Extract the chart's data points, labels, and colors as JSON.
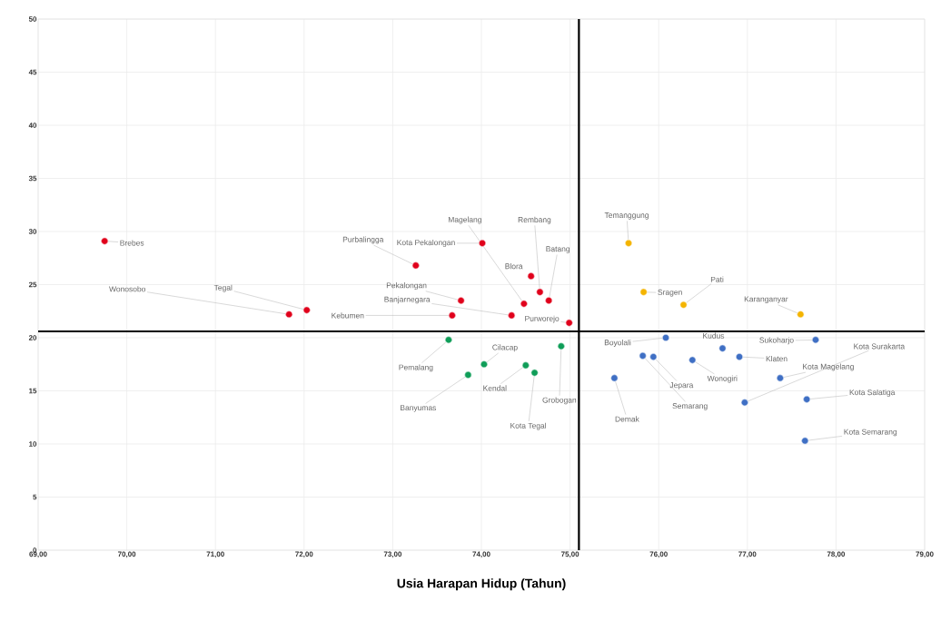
{
  "chart_data": {
    "type": "scatter",
    "xlabel": "Usia Harapan Hidup (Tahun)",
    "xlim": [
      69,
      79
    ],
    "xticks": [
      {
        "value": 69,
        "label": "69,00"
      },
      {
        "value": 70,
        "label": "70,00"
      },
      {
        "value": 71,
        "label": "71,00"
      },
      {
        "value": 72,
        "label": "72,00"
      },
      {
        "value": 73,
        "label": "73,00"
      },
      {
        "value": 74,
        "label": "74,00"
      },
      {
        "value": 75,
        "label": "75,00"
      },
      {
        "value": 76,
        "label": "76,00"
      },
      {
        "value": 77,
        "label": "77,00"
      },
      {
        "value": 78,
        "label": "78,00"
      },
      {
        "value": 79,
        "label": "79,00"
      }
    ],
    "ylim": [
      0,
      50
    ],
    "yticks": [
      0,
      5,
      10,
      15,
      20,
      25,
      30,
      35,
      40,
      45,
      50
    ],
    "grid": true,
    "marker": "circle",
    "ref_lines": [
      {
        "axis": "x",
        "value": 75.1,
        "color": "#000000"
      },
      {
        "axis": "y",
        "value": 20.6,
        "color": "#000000"
      }
    ],
    "series": [
      {
        "color": "#e0001b",
        "x": [
          69.75,
          71.83,
          72.03,
          73.26,
          74.01,
          74.48,
          74.66,
          74.76,
          74.56,
          73.77,
          74.34,
          73.67,
          74.99
        ],
        "values": [
          29.1,
          22.2,
          22.6,
          26.8,
          28.9,
          23.2,
          24.3,
          23.5,
          25.8,
          23.5,
          22.1,
          22.1,
          21.4
        ]
      },
      {
        "color": "#f4b400",
        "x": [
          75.66,
          75.83,
          76.28,
          77.6
        ],
        "values": [
          28.9,
          24.3,
          23.1,
          22.2
        ]
      },
      {
        "color": "#3f6fc4",
        "x": [
          76.08,
          76.72,
          77.77,
          76.97,
          77.37,
          76.91,
          76.38,
          75.94,
          75.82,
          75.5,
          77.67,
          77.65
        ],
        "values": [
          20.0,
          19.0,
          19.8,
          13.9,
          16.2,
          18.2,
          17.9,
          18.2,
          18.3,
          16.2,
          14.2,
          10.3
        ]
      },
      {
        "color": "#0f9d58",
        "x": [
          73.63,
          74.03,
          73.85,
          74.5,
          74.6,
          74.9
        ],
        "values": [
          19.8,
          17.5,
          16.5,
          17.4,
          16.7,
          19.2
        ]
      }
    ],
    "annotations": [
      {
        "text": "Brebes",
        "x": 69.75,
        "y": 29.1
      },
      {
        "text": "Wonosobo",
        "x": 71.83,
        "y": 22.2
      },
      {
        "text": "Tegal",
        "x": 72.03,
        "y": 22.6
      },
      {
        "text": "Purbalingga",
        "x": 73.26,
        "y": 26.8
      },
      {
        "text": "Kota Pekalongan",
        "x": 74.01,
        "y": 28.9
      },
      {
        "text": "Magelang",
        "x": 74.48,
        "y": 23.2
      },
      {
        "text": "Rembang",
        "x": 74.66,
        "y": 24.3
      },
      {
        "text": "Batang",
        "x": 74.76,
        "y": 23.5
      },
      {
        "text": "Blora",
        "x": 74.56,
        "y": 25.8
      },
      {
        "text": "Pekalongan",
        "x": 73.77,
        "y": 23.5
      },
      {
        "text": "Banjarnegara",
        "x": 74.34,
        "y": 22.1
      },
      {
        "text": "Kebumen",
        "x": 73.67,
        "y": 22.1
      },
      {
        "text": "Purworejo",
        "x": 74.99,
        "y": 21.4
      },
      {
        "text": "Temanggung",
        "x": 75.66,
        "y": 28.9
      },
      {
        "text": "Sragen",
        "x": 75.83,
        "y": 24.3
      },
      {
        "text": "Pati",
        "x": 76.28,
        "y": 23.1
      },
      {
        "text": "Karanganyar",
        "x": 77.6,
        "y": 22.2
      },
      {
        "text": "Boyolali",
        "x": 76.08,
        "y": 20.0
      },
      {
        "text": "Kudus",
        "x": 76.72,
        "y": 19.0
      },
      {
        "text": "Sukoharjo",
        "x": 77.77,
        "y": 19.8
      },
      {
        "text": "Kota Surakarta",
        "x": 76.97,
        "y": 13.9
      },
      {
        "text": "Kota Magelang",
        "x": 77.37,
        "y": 16.2
      },
      {
        "text": "Klaten",
        "x": 76.91,
        "y": 18.2
      },
      {
        "text": "Wonogiri",
        "x": 76.38,
        "y": 17.9
      },
      {
        "text": "Jepara",
        "x": 75.94,
        "y": 18.2
      },
      {
        "text": "Semarang",
        "x": 75.82,
        "y": 18.3
      },
      {
        "text": "Demak",
        "x": 75.5,
        "y": 16.2
      },
      {
        "text": "Kota Salatiga",
        "x": 77.67,
        "y": 14.2
      },
      {
        "text": "Kota Semarang",
        "x": 77.65,
        "y": 10.3
      },
      {
        "text": "Pemalang",
        "x": 73.63,
        "y": 19.8
      },
      {
        "text": "Cilacap",
        "x": 74.03,
        "y": 17.5
      },
      {
        "text": "Banyumas",
        "x": 73.85,
        "y": 16.5
      },
      {
        "text": "Kendal",
        "x": 74.5,
        "y": 17.4
      },
      {
        "text": "Kota Tegal",
        "x": 74.6,
        "y": 16.7
      },
      {
        "text": "Grobogan",
        "x": 74.9,
        "y": 19.2
      }
    ]
  }
}
